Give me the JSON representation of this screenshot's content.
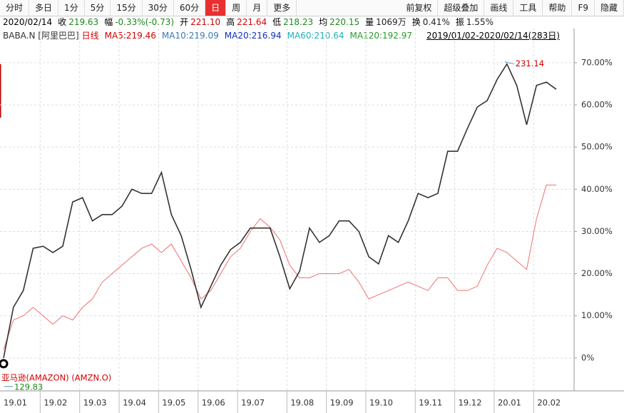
{
  "toolbar": {
    "left": [
      "分时",
      "多日",
      "1分",
      "5分",
      "15分",
      "30分",
      "60分",
      "日",
      "周",
      "月",
      "更多"
    ],
    "active_tab": 7,
    "right": [
      "前复权",
      "超级叠加",
      "画线",
      "工具",
      "帮助",
      "F9",
      "隐藏"
    ]
  },
  "quote": {
    "date": "2020/02/14",
    "items": [
      {
        "label": "收",
        "value": "219.63",
        "color": "#1a8a1a"
      },
      {
        "label": "幅",
        "value": "-0.33%(-0.73)",
        "color": "#1a8a1a"
      },
      {
        "label": "开",
        "value": "221.10",
        "color": "#d40000"
      },
      {
        "label": "高",
        "value": "221.64",
        "color": "#d40000"
      },
      {
        "label": "低",
        "value": "218.23",
        "color": "#1a8a1a"
      },
      {
        "label": "均",
        "value": "220.15",
        "color": "#1a8a1a"
      },
      {
        "label": "量",
        "value": "1069万",
        "color": "#222222"
      },
      {
        "label": "换",
        "value": "0.41%",
        "color": "#222222"
      },
      {
        "label": "振",
        "value": "1.55%",
        "color": "#222222"
      }
    ]
  },
  "legend": {
    "items": [
      {
        "text": "BABA.N [阿里巴巴]",
        "color": "#333333"
      },
      {
        "text": "日线",
        "color": "#d40000"
      },
      {
        "text": "MA5:219.46",
        "color": "#d40000"
      },
      {
        "text": "MA10:219.09",
        "color": "#3a7ab8"
      },
      {
        "text": "MA20:216.94",
        "color": "#1030c0"
      },
      {
        "text": "MA60:210.64",
        "color": "#20b0b8"
      },
      {
        "text": "MA120:192.97",
        "color": "#2a9a2a"
      }
    ],
    "range": "2019/01/02-2020/02/14(283日)"
  },
  "chart_data": {
    "type": "line",
    "categories": [
      "19.01",
      null,
      null,
      null,
      "19.02",
      null,
      null,
      null,
      "19.03",
      null,
      null,
      null,
      "19.04",
      null,
      null,
      null,
      "19.05",
      null,
      null,
      null,
      "19.06",
      null,
      null,
      null,
      "19.07",
      null,
      null,
      null,
      null,
      "19.08",
      null,
      null,
      null,
      "19.09",
      null,
      null,
      null,
      "19.10",
      null,
      null,
      null,
      null,
      "19.11",
      null,
      null,
      null,
      "19.12",
      null,
      null,
      null,
      "20.01",
      null,
      null,
      null,
      "20.02",
      null,
      null
    ],
    "series": [
      {
        "name": "BABA.N",
        "color": "#333333",
        "values": [
          0,
          12,
          16,
          26,
          26.5,
          25,
          26.5,
          37,
          38,
          32.5,
          34,
          34,
          36,
          40,
          39,
          39,
          44,
          34,
          29,
          21,
          12,
          17,
          22,
          25.7,
          27.4,
          30.8,
          30.8,
          30.8,
          24,
          16.4,
          20.6,
          30.8,
          27.4,
          29,
          32.5,
          32.5,
          30,
          24,
          22.3,
          29,
          27.4,
          32.5,
          39,
          38,
          39,
          49,
          49,
          54.4,
          59.5,
          61,
          66,
          69.7,
          64.6,
          55.3,
          64.6,
          65.4,
          63.7
        ]
      },
      {
        "name": "亚马逊(AMAZON) (AMZN.O)",
        "color": "#f07070",
        "values": [
          2,
          9,
          10,
          12,
          10,
          8,
          10,
          9,
          12,
          14,
          18,
          20,
          22,
          24,
          26,
          27,
          25,
          27,
          23,
          19,
          14,
          16,
          20,
          24,
          26,
          30,
          33,
          31,
          28,
          22,
          19,
          19,
          20,
          20,
          20,
          21,
          18,
          14,
          15,
          16,
          17,
          18,
          17,
          16,
          19,
          19,
          16,
          16,
          17,
          22,
          26,
          25,
          23,
          21,
          33,
          41,
          41
        ]
      }
    ],
    "annotations": [
      "231.14",
      "129.83"
    ],
    "ylim": [
      -7.8,
      78.1
    ],
    "yticks": [
      {
        "value": 0,
        "label": "0%"
      },
      {
        "value": 10,
        "label": "10.00%"
      },
      {
        "value": 20,
        "label": "20.00%"
      },
      {
        "value": 30,
        "label": "30.00%"
      },
      {
        "value": 40,
        "label": "40.00%"
      },
      {
        "value": 50,
        "label": "50.00%"
      },
      {
        "value": 60,
        "label": "60.00%"
      },
      {
        "value": 70,
        "label": "70.00%"
      }
    ],
    "grid": true
  }
}
